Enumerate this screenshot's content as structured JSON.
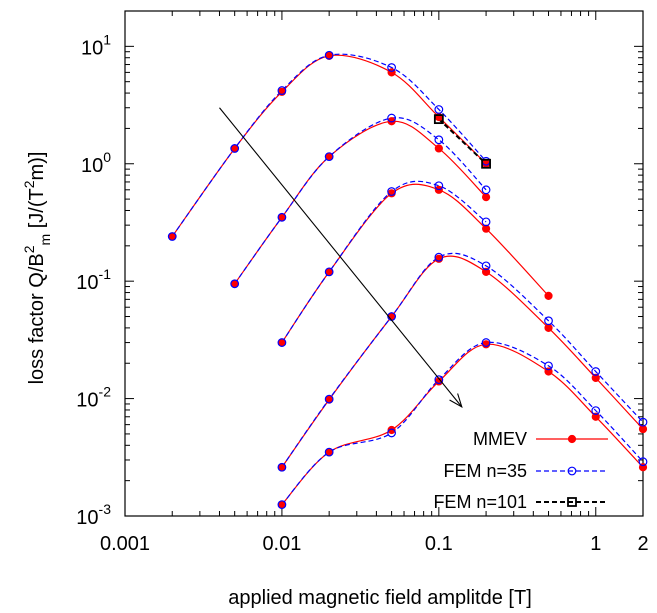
{
  "chart_data": {
    "type": "line",
    "xlabel": "applied magnetic field amplitde [T]",
    "ylabel": {
      "main": "loss factor Q/B",
      "sup": "2",
      "sub": "m",
      "unit_pre": " [J/(T",
      "unit_sup": "2",
      "unit_post": "m)]"
    },
    "x_scale": "log",
    "y_scale": "log",
    "xlim": [
      0.001,
      2
    ],
    "ylim": [
      0.001,
      20
    ],
    "x_ticks": [
      {
        "value": 0.001,
        "label": "0.001"
      },
      {
        "value": 0.01,
        "label": "0.01"
      },
      {
        "value": 0.1,
        "label": "0.1"
      },
      {
        "value": 1,
        "label": "1"
      },
      {
        "value": 2,
        "label": "2"
      }
    ],
    "y_ticks": [
      {
        "value": 0.001,
        "base": "10",
        "exp": "-3"
      },
      {
        "value": 0.01,
        "base": "10",
        "exp": "-2"
      },
      {
        "value": 0.1,
        "base": "10",
        "exp": "-1"
      },
      {
        "value": 1,
        "base": "10",
        "exp": "0"
      },
      {
        "value": 10,
        "base": "10",
        "exp": "1"
      }
    ],
    "series": [
      {
        "name": "MMEV",
        "color": "#ff0000",
        "style": "solid",
        "marker": "filled-circle",
        "curves": [
          {
            "x": [
              0.002,
              0.005,
              0.01,
              0.02,
              0.05,
              0.1,
              0.2
            ],
            "y": [
              0.24,
              1.35,
              4.1,
              8.3,
              6.0,
              2.5,
              1.0
            ]
          },
          {
            "x": [
              0.005,
              0.01,
              0.02,
              0.05,
              0.1,
              0.2
            ],
            "y": [
              0.095,
              0.35,
              1.15,
              2.3,
              1.35,
              0.52
            ]
          },
          {
            "x": [
              0.01,
              0.02,
              0.05,
              0.1,
              0.2,
              0.5
            ],
            "y": [
              0.03,
              0.12,
              0.56,
              0.6,
              0.28,
              0.075
            ]
          },
          {
            "x": [
              0.01,
              0.02,
              0.05,
              0.1,
              0.2,
              0.5,
              1,
              2
            ],
            "y": [
              0.0026,
              0.0098,
              0.05,
              0.155,
              0.12,
              0.04,
              0.015,
              0.0055
            ]
          },
          {
            "x": [
              0.01,
              0.02,
              0.05,
              0.1,
              0.2,
              0.5,
              1,
              2
            ],
            "y": [
              0.00125,
              0.0035,
              0.0054,
              0.014,
              0.029,
              0.017,
              0.007,
              0.0026
            ]
          }
        ]
      },
      {
        "name": "FEM n=35",
        "color": "#0000ff",
        "style": "dashed",
        "marker": "open-circle",
        "curves": [
          {
            "x": [
              0.002,
              0.005,
              0.01,
              0.02,
              0.05,
              0.1,
              0.2
            ],
            "y": [
              0.24,
              1.35,
              4.2,
              8.4,
              6.6,
              2.9,
              1.05
            ]
          },
          {
            "x": [
              0.005,
              0.01,
              0.02,
              0.05,
              0.1,
              0.2
            ],
            "y": [
              0.095,
              0.35,
              1.15,
              2.45,
              1.6,
              0.6
            ]
          },
          {
            "x": [
              0.01,
              0.02,
              0.05,
              0.1,
              0.2
            ],
            "y": [
              0.03,
              0.12,
              0.58,
              0.65,
              0.32
            ]
          },
          {
            "x": [
              0.01,
              0.02,
              0.05,
              0.1,
              0.2,
              0.5,
              1,
              2
            ],
            "y": [
              0.0026,
              0.0099,
              0.05,
              0.16,
              0.135,
              0.046,
              0.017,
              0.0063
            ]
          },
          {
            "x": [
              0.01,
              0.02,
              0.05,
              0.1,
              0.2,
              0.5,
              1,
              2
            ],
            "y": [
              0.00125,
              0.0035,
              0.0051,
              0.0145,
              0.03,
              0.019,
              0.0079,
              0.0029
            ]
          }
        ]
      },
      {
        "name": "FEM n=101",
        "color": "#000000",
        "style": "dashed",
        "marker": "open-square",
        "curves": [
          {
            "x": [
              0.1,
              0.2
            ],
            "y": [
              2.4,
              1.0
            ]
          }
        ]
      }
    ],
    "arrow": {
      "from": [
        0.004,
        3.0
      ],
      "to": [
        0.14,
        0.0085
      ]
    },
    "legend_position": "bottom-right"
  }
}
